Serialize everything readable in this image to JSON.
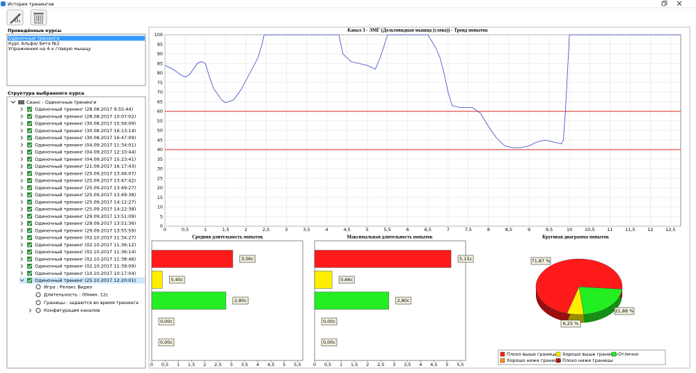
{
  "window": {
    "title": "История тренингов"
  },
  "courses": {
    "title": "Проведённые курсы",
    "items": [
      "Одиночные тренинги",
      "Курс Альфа/ Бета №2",
      "Упражнения на 4-х главую мышцу"
    ]
  },
  "structure": {
    "title": "Структура выбранного курса",
    "root": "Сеанс - Одиночные тренинги",
    "sessions": [
      "Одиночный тренинг (28.08.2017 9:55:44)",
      "Одиночный тренинг (28.08.2017 10:07:02)",
      "Одиночный тренинг (30.08.2017 15:56:09)",
      "Одиночный тренинг (30.08.2017 16:13:14)",
      "Одиночный тренинг (30.08.2017 16:47:09)",
      "Одиночный тренинг (04.09.2017 11:34:01)",
      "Одиночный тренинг (04.09.2017 12:10:44)",
      "Одиночный тренинг (04.09.2017 15:23:41)",
      "Одиночный тренинг (21.09.2017 16:17:43)",
      "Одиночный тренинг (25.09.2017 13:46:07)",
      "Одиночный тренинг (25.09.2017 13:47:42)",
      "Одиночный тренинг (25.09.2017 13:49:27)",
      "Одиночный тренинг (25.09.2017 13:49:38)",
      "Одиночный тренинг (25.09.2017 14:12:27)",
      "Одиночный тренинг (25.09.2017 14:22:38)",
      "Одиночный тренинг (29.09.2017 13:51:09)",
      "Одиночный тренинг (29.09.2017 13:51:36)",
      "Одиночный тренинг (29.09.2017 13:55:59)",
      "Одиночный тренинг (02.10.2017 11:34:27)",
      "Одиночный тренинг (02.10.2017 11:36:12)",
      "Одиночный тренинг (02.10.2017 11:36:14)",
      "Одиночный тренинг (02.10.2017 11:38:46)",
      "Одиночный тренинг (02.10.2017 11:39:09)",
      "Одиночный тренинг (10.10.2017 10:17:04)",
      "Одиночный тренинг (25.10.2017 12:20:01)"
    ],
    "details": [
      "Игра : Релакс Видео",
      "Длительность : 00мин. 12с",
      "Границы : задаются во время тренинга",
      "Конфигурация каналов"
    ]
  },
  "chart_data": [
    {
      "type": "line",
      "title": "Канал 3 - ЭМГ (Дельтовидная мышца (слева)) - Тренд попыток",
      "color": "#3344cc",
      "x": [
        0,
        0.2,
        0.4,
        0.5,
        0.6,
        0.8,
        0.9,
        1.0,
        1.1,
        1.2,
        1.4,
        1.5,
        1.7,
        1.9,
        2.1,
        2.3,
        2.4,
        2.45,
        4.3,
        4.4,
        4.6,
        4.8,
        5.0,
        5.2,
        5.3,
        5.4,
        5.5,
        6.5,
        6.7,
        6.8,
        6.9,
        7.0,
        7.1,
        7.3,
        7.6,
        7.8,
        8.0,
        8.2,
        8.4,
        8.6,
        8.8,
        9.0,
        9.2,
        9.4,
        9.6,
        9.8,
        9.85,
        9.9,
        10.0,
        12.75
      ],
      "values": [
        84,
        82,
        79,
        78,
        79,
        85,
        86,
        85,
        78,
        72,
        66,
        64.5,
        66,
        72,
        80,
        88,
        95,
        100,
        100,
        90,
        86,
        85,
        84,
        82,
        87,
        93,
        100,
        100,
        93,
        88,
        80,
        70,
        63,
        62,
        62,
        59,
        52,
        46,
        42,
        41,
        41,
        42,
        44,
        45,
        44,
        43,
        45,
        60,
        100,
        100
      ],
      "thresholds": [
        60,
        40
      ],
      "threshold_color": "#dd2222",
      "grid": true,
      "xlim": [
        0,
        12.75
      ],
      "ylim": [
        0,
        100
      ],
      "xticks": [
        0,
        {
          "value": 0.5,
          "label": "0,5"
        },
        1,
        {
          "value": 1.5,
          "label": "1,5"
        },
        2,
        {
          "value": 2.5,
          "label": "2,5"
        },
        3,
        {
          "value": 3.5,
          "label": "3,5"
        },
        4,
        {
          "value": 4.5,
          "label": "4,5"
        },
        5,
        {
          "value": 5.5,
          "label": "5,5"
        },
        6,
        {
          "value": 6.5,
          "label": "6,5"
        },
        7,
        {
          "value": 7.5,
          "label": "7,5"
        },
        8,
        {
          "value": 8.5,
          "label": "8,5"
        },
        9,
        {
          "value": 9.5,
          "label": "9,5"
        },
        10,
        {
          "value": 10.5,
          "label": "10,5"
        },
        11,
        {
          "value": 11.5,
          "label": "11,5"
        },
        12,
        {
          "value": 12.5,
          "label": "12,5"
        }
      ],
      "yticks": [
        0,
        5,
        10,
        15,
        20,
        25,
        30,
        35,
        40,
        45,
        50,
        55,
        60,
        65,
        70,
        75,
        80,
        85,
        90,
        95,
        100
      ]
    },
    {
      "type": "hbar",
      "title": "Средняя длительность попыток",
      "values": [
        3.06,
        0.4,
        2.8,
        0,
        0
      ],
      "value_labels": [
        "3,06с",
        "0,40с",
        "2,80с",
        "0,00с",
        "0,00с"
      ],
      "colors": [
        "#ff1a1a",
        "#ffee00",
        "#22ee22",
        "#ff8c1a",
        "#b01515"
      ],
      "xlim": [
        0,
        5.7
      ],
      "xticks": [
        0,
        {
          "value": 0.5,
          "label": "0,5"
        },
        1,
        {
          "value": 1.5,
          "label": "1,5"
        },
        2,
        {
          "value": 2.5,
          "label": "2,5"
        },
        3,
        {
          "value": 3.5,
          "label": "3,5"
        },
        4,
        {
          "value": 4.5,
          "label": "4,5"
        },
        5,
        {
          "value": 5.5,
          "label": "5,5"
        }
      ]
    },
    {
      "type": "hbar",
      "title": "Максимальная длительность попыток",
      "values": [
        5.15,
        0.66,
        2.8,
        0,
        0
      ],
      "value_labels": [
        "5,15с",
        "0,66с",
        "2,80с",
        "0,00с",
        "0,00с"
      ],
      "colors": [
        "#ff1a1a",
        "#ffee00",
        "#22ee22",
        "#ff8c1a",
        "#b01515"
      ],
      "xlim": [
        0,
        5.7
      ],
      "xticks": [
        0,
        {
          "value": 0.5,
          "label": "0,5"
        },
        1,
        {
          "value": 1.5,
          "label": "1,5"
        },
        2,
        {
          "value": 2.5,
          "label": "2,5"
        },
        3,
        {
          "value": 3.5,
          "label": "3,5"
        },
        4,
        {
          "value": 4.5,
          "label": "4,5"
        },
        5,
        {
          "value": 5.5,
          "label": "5,5"
        }
      ]
    },
    {
      "type": "pie",
      "title": "Круговая диаграмма попыток",
      "categories": [
        "Плохо выше границы",
        "Хорошо выше границы",
        "Отлично",
        "Хорошо ниже границы",
        "Плохо ниже границы"
      ],
      "values": [
        71.87,
        6.25,
        21.88,
        0,
        0
      ],
      "value_labels": [
        "71,87 %",
        "6,25 %",
        "21,88 %",
        null,
        null
      ],
      "colors": [
        "#ff1a1a",
        "#ffee00",
        "#22ee22",
        "#ff8c1a",
        "#b01515"
      ]
    }
  ]
}
